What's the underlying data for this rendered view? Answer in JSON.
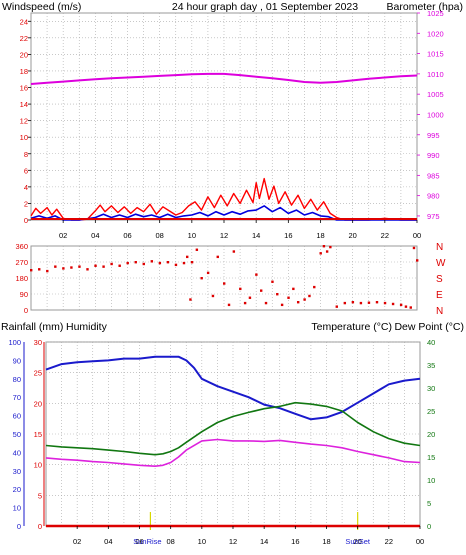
{
  "colors": {
    "frame": "#9a9a9a",
    "grid": "#a8a8a8",
    "windspeed": "#e00000",
    "gust": "#ff0000",
    "avgwind": "#0000dd",
    "barometer": "#dd00dd",
    "title": "#d8d800",
    "winddir": "#dd0000",
    "humidity": "#1a1acc",
    "temperature": "#117711",
    "dewpoint": "#dd22dd",
    "rain": "#dd0000",
    "sun": "#d8d800"
  },
  "header": {
    "windspeed_label": "Windspeed (m/s)",
    "title": "24 hour graph day , 01 September 2023",
    "barometer_label": "Barometer (hpa)"
  },
  "panel2_header": {
    "rainfall_label": "Rainfall (mm)",
    "humidity_label": "Humidity",
    "temperature_label": "Temperature (°C)",
    "dewpoint_label": "Dew Point (°C)"
  },
  "sun_labels": {
    "sunrise": "SunRise",
    "sunset": "SunSet"
  },
  "x_ticks": [
    "02",
    "04",
    "06",
    "08",
    "10",
    "12",
    "14",
    "16",
    "18",
    "20",
    "22",
    "00"
  ],
  "chart_data": [
    {
      "type": "line",
      "title": "24 hour graph day , 01 September 2023",
      "xlabel": "",
      "x_range_hours": [
        0,
        24
      ],
      "grid": true,
      "left_axis": {
        "label": "Windspeed (m/s)",
        "range": [
          0,
          25
        ],
        "ticks": [
          0,
          2,
          4,
          6,
          8,
          10,
          12,
          14,
          16,
          18,
          20,
          22,
          24
        ]
      },
      "right_axis": {
        "label": "Barometer (hpa)",
        "range": [
          974,
          1025
        ],
        "ticks": [
          975,
          980,
          985,
          990,
          995,
          1000,
          1005,
          1010,
          1015,
          1020,
          1025
        ]
      },
      "series": [
        {
          "name": "Barometer (hpa)",
          "axis": "right",
          "x": [
            0,
            1,
            2,
            3,
            4,
            5,
            6,
            7,
            8,
            9,
            10,
            11,
            12,
            13,
            14,
            15,
            16,
            17,
            18,
            19,
            20,
            21,
            22,
            23,
            24
          ],
          "values": [
            1007.5,
            1007.8,
            1008.1,
            1008.4,
            1008.7,
            1008.9,
            1009.1,
            1009.3,
            1009.5,
            1009.7,
            1009.9,
            1010.0,
            1010.0,
            1009.7,
            1009.3,
            1008.9,
            1008.5,
            1008.0,
            1007.8,
            1008.0,
            1008.4,
            1008.8,
            1009.1,
            1009.4,
            1009.6
          ]
        },
        {
          "name": "Windspeed",
          "axis": "left",
          "x": [
            0,
            0.3,
            0.6,
            1,
            1.3,
            1.6,
            2,
            2.5,
            3,
            3.5,
            4,
            4.3,
            4.6,
            5,
            5.4,
            5.8,
            6.2,
            6.6,
            7,
            7.4,
            7.8,
            8.2,
            8.6,
            9,
            9.4,
            9.8,
            10.2,
            10.6,
            11,
            11.4,
            11.8,
            12.2,
            12.6,
            13,
            13.4,
            13.8,
            14,
            14.2,
            14.5,
            14.8,
            15.1,
            15.4,
            15.8,
            16.2,
            16.6,
            17,
            17.4,
            17.8,
            18.2,
            18.6,
            19,
            19.5,
            20,
            21,
            22,
            23,
            24
          ],
          "values": [
            0.5,
            1.4,
            0.8,
            1.5,
            0.6,
            1.3,
            0.2,
            0,
            0,
            0.1,
            1.1,
            1.8,
            1.0,
            1.7,
            0.9,
            1.6,
            0.8,
            1.5,
            1.0,
            1.9,
            0.7,
            1.6,
            1.1,
            0.6,
            0.9,
            1.7,
            2.2,
            1.2,
            2.8,
            1.5,
            3.0,
            1.7,
            3.2,
            2.0,
            3.6,
            2.1,
            4.5,
            2.6,
            5.0,
            2.5,
            4.1,
            2.0,
            3.4,
            1.8,
            3.0,
            1.4,
            2.5,
            1.2,
            2.2,
            0.8,
            0.3,
            0,
            0,
            0,
            0.2,
            0,
            0
          ]
        },
        {
          "name": "Average wind",
          "axis": "left",
          "x": [
            0,
            0.5,
            1,
            1.5,
            2,
            3,
            4,
            4.5,
            5,
            5.5,
            6,
            6.5,
            7,
            7.5,
            8,
            8.5,
            9,
            9.5,
            10,
            10.5,
            11,
            11.5,
            12,
            12.5,
            13,
            13.5,
            14,
            14.5,
            15,
            15.5,
            16,
            16.5,
            17,
            17.5,
            18,
            18.5,
            19,
            20,
            22,
            24
          ],
          "values": [
            0.2,
            0.5,
            0.2,
            0.5,
            0,
            0,
            0.3,
            0.7,
            0.3,
            0.6,
            0.3,
            0.7,
            0.4,
            0.6,
            0.3,
            0.7,
            0.3,
            0.5,
            0.6,
            0.9,
            0.5,
            1.0,
            0.6,
            1.0,
            0.7,
            1.1,
            1.2,
            1.7,
            1.0,
            1.5,
            0.8,
            1.2,
            0.6,
            0.9,
            0.5,
            0.4,
            0,
            0,
            0,
            0
          ]
        }
      ]
    },
    {
      "type": "scatter",
      "title": "",
      "x_range_hours": [
        0,
        24
      ],
      "grid": true,
      "left_axis": {
        "range": [
          0,
          360
        ],
        "ticks": [
          0,
          90,
          180,
          270,
          360
        ]
      },
      "right_axis": {
        "labels": [
          "N",
          "W",
          "S",
          "E",
          "N"
        ]
      },
      "series": [
        {
          "name": "Wind direction",
          "x": [
            0,
            0.5,
            1,
            1.5,
            2,
            2.5,
            3,
            3.5,
            4,
            4.5,
            5,
            5.5,
            6,
            6.5,
            7,
            7.5,
            8,
            8.5,
            9,
            9.5,
            9.7,
            9.9,
            10,
            10.3,
            10.6,
            11,
            11.3,
            11.6,
            12,
            12.3,
            12.6,
            13,
            13.3,
            13.6,
            14,
            14.3,
            14.6,
            15,
            15.3,
            15.6,
            16,
            16.3,
            16.6,
            17,
            17.3,
            17.6,
            18,
            18.2,
            18.4,
            18.6,
            19,
            19.5,
            20,
            20.5,
            21,
            21.5,
            22,
            22.5,
            23,
            23.3,
            23.6,
            23.8,
            24
          ],
          "values": [
            225,
            230,
            220,
            245,
            235,
            240,
            245,
            230,
            250,
            245,
            260,
            250,
            265,
            270,
            260,
            275,
            265,
            270,
            255,
            265,
            300,
            60,
            270,
            340,
            180,
            210,
            80,
            300,
            150,
            30,
            330,
            120,
            40,
            70,
            200,
            110,
            40,
            160,
            90,
            30,
            70,
            120,
            45,
            60,
            80,
            130,
            320,
            360,
            330,
            355,
            20,
            40,
            45,
            40,
            42,
            45,
            40,
            35,
            30,
            20,
            15,
            350,
            280
          ]
        }
      ]
    },
    {
      "type": "line",
      "title": "",
      "x_range_hours": [
        0,
        24
      ],
      "grid": true,
      "axes": {
        "humidity": {
          "label": "Humidity",
          "range": [
            0,
            100
          ],
          "ticks": [
            0,
            10,
            20,
            30,
            40,
            50,
            60,
            70,
            80,
            90,
            100
          ]
        },
        "rainfall": {
          "label": "Rainfall (mm)",
          "range": [
            0,
            30
          ],
          "ticks": [
            0,
            5,
            10,
            15,
            20,
            25,
            30
          ]
        },
        "temperature": {
          "label": "Temperature (°C)",
          "range": [
            0,
            40
          ],
          "ticks": [
            0,
            5,
            10,
            15,
            20,
            25,
            30,
            35,
            40
          ]
        }
      },
      "annotations": [
        {
          "label": "SunRise",
          "x": 6.7
        },
        {
          "label": "SunSet",
          "x": 20.0
        }
      ],
      "series": [
        {
          "name": "Humidity",
          "axis": "humidity",
          "x": [
            0,
            1,
            2,
            3,
            4,
            5,
            6,
            7,
            8,
            8.5,
            9,
            9.5,
            10,
            11,
            12,
            13,
            14,
            15,
            16,
            17,
            18,
            19,
            20,
            21,
            22,
            23,
            24
          ],
          "values": [
            85,
            88,
            89,
            89.5,
            90,
            91,
            91,
            92,
            92,
            92,
            90,
            86,
            80,
            76,
            73,
            70,
            66,
            64,
            61,
            58,
            59,
            62,
            67,
            72,
            77,
            79,
            80
          ]
        },
        {
          "name": "Temperature (°C)",
          "axis": "temperature",
          "x": [
            0,
            1,
            2,
            3,
            4,
            5,
            6,
            7,
            7.5,
            8,
            8.5,
            9,
            10,
            11,
            12,
            13,
            14,
            15,
            16,
            17,
            18,
            19,
            20,
            21,
            22,
            23,
            24
          ],
          "values": [
            17.5,
            17.2,
            17.0,
            16.8,
            16.5,
            16.2,
            15.8,
            15.5,
            15.7,
            16.2,
            17.0,
            18.2,
            20.5,
            22.5,
            23.8,
            24.7,
            25.5,
            26.0,
            26.8,
            26.5,
            26.0,
            25.0,
            22.5,
            20.5,
            19.0,
            18.0,
            17.5
          ]
        },
        {
          "name": "Dew Point (°C)",
          "axis": "temperature",
          "x": [
            0,
            1,
            2,
            3,
            4,
            5,
            6,
            7,
            7.5,
            8,
            8.5,
            9,
            10,
            11,
            12,
            13,
            14,
            15,
            16,
            17,
            18,
            19,
            20,
            21,
            22,
            23,
            24
          ],
          "values": [
            14.8,
            14.5,
            14.3,
            14.0,
            13.8,
            13.5,
            13.2,
            13.0,
            13.2,
            13.8,
            15.0,
            16.5,
            18.5,
            18.8,
            18.5,
            18.5,
            18.4,
            18.6,
            18.2,
            17.8,
            17.5,
            17.0,
            16.2,
            15.5,
            14.8,
            14.0,
            13.8
          ]
        },
        {
          "name": "Rainfall (mm)",
          "axis": "rainfall",
          "x": [
            0,
            24
          ],
          "values": [
            0,
            0
          ]
        }
      ]
    }
  ]
}
